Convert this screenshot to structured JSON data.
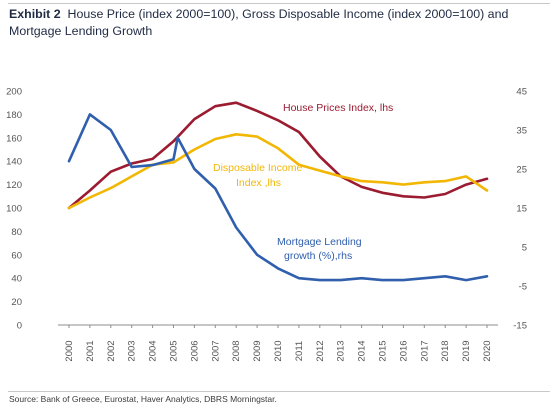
{
  "header": {
    "exhibit_label": "Exhibit 2",
    "title": "House Price (index 2000=100), Gross Disposable Income (index 2000=100) and Mortgage Lending Growth"
  },
  "footer": {
    "source": "Source: Bank of Greece, Eurostat, Haver Analytics, DBRS Morningstar."
  },
  "colors": {
    "house": "#9b1b30",
    "income": "#f2b705",
    "mortgage": "#2f5fad"
  },
  "chart_data": {
    "type": "line",
    "x": [
      "2000",
      "2001",
      "2002",
      "2003",
      "2004",
      "2005",
      "2006",
      "2007",
      "2008",
      "2009",
      "2010",
      "2011",
      "2012",
      "2013",
      "2014",
      "2015",
      "2016",
      "2017",
      "2018",
      "2019",
      "2020"
    ],
    "y_left": {
      "min": 0,
      "max": 200,
      "ticks": [
        0,
        20,
        40,
        60,
        80,
        100,
        120,
        140,
        160,
        180,
        200
      ]
    },
    "y_right": {
      "min": -15,
      "max": 45,
      "ticks": [
        -15,
        -5,
        5,
        15,
        25,
        35,
        45
      ]
    },
    "grid": false,
    "series": [
      {
        "name": "House Prices Index, lhs",
        "axis": "left",
        "color_key": "house",
        "points": [
          [
            2000,
            100
          ],
          [
            2001,
            115
          ],
          [
            2002,
            131
          ],
          [
            2003,
            138
          ],
          [
            2004,
            142
          ],
          [
            2005,
            157
          ],
          [
            2006,
            176
          ],
          [
            2007,
            187
          ],
          [
            2008,
            190
          ],
          [
            2009,
            183
          ],
          [
            2010,
            175
          ],
          [
            2011,
            165
          ],
          [
            2012,
            144
          ],
          [
            2013,
            127
          ],
          [
            2014,
            118
          ],
          [
            2015,
            113
          ],
          [
            2016,
            110
          ],
          [
            2017,
            109
          ],
          [
            2018,
            112
          ],
          [
            2019,
            120
          ],
          [
            2020,
            125
          ]
        ]
      },
      {
        "name": "Disposable Income Index ,lhs",
        "axis": "left",
        "color_key": "income",
        "points": [
          [
            2000,
            100
          ],
          [
            2001,
            109
          ],
          [
            2002,
            117
          ],
          [
            2003,
            127
          ],
          [
            2004,
            137
          ],
          [
            2005,
            139
          ],
          [
            2006,
            150
          ],
          [
            2007,
            159
          ],
          [
            2008,
            163
          ],
          [
            2009,
            161
          ],
          [
            2010,
            151
          ],
          [
            2011,
            137
          ],
          [
            2012,
            132
          ],
          [
            2013,
            127
          ],
          [
            2014,
            123
          ],
          [
            2015,
            122
          ],
          [
            2016,
            120
          ],
          [
            2017,
            122
          ],
          [
            2018,
            123
          ],
          [
            2019,
            127
          ],
          [
            2020,
            115
          ]
        ]
      },
      {
        "name": "Mortgage Lending growth (%),rhs",
        "axis": "right",
        "color_key": "mortgage",
        "points": [
          [
            2000,
            27
          ],
          [
            2001,
            39
          ],
          [
            2002,
            35
          ],
          [
            2003,
            25.5
          ],
          [
            2004,
            26
          ],
          [
            2005,
            27.5
          ],
          [
            2005.2,
            33
          ],
          [
            2006,
            25
          ],
          [
            2007,
            20
          ],
          [
            2008,
            10
          ],
          [
            2009,
            3
          ],
          [
            2010,
            -0.5
          ],
          [
            2011,
            -3
          ],
          [
            2012,
            -3.5
          ],
          [
            2013,
            -3.5
          ],
          [
            2014,
            -3
          ],
          [
            2015,
            -3.5
          ],
          [
            2016,
            -3.5
          ],
          [
            2017,
            -3
          ],
          [
            2018,
            -2.5
          ],
          [
            2019,
            -3.5
          ],
          [
            2020,
            -2.5
          ]
        ]
      }
    ],
    "annotations": {
      "house": "House Prices Index, lhs",
      "income_line1": "Disposable Income",
      "income_line2": "Index ,lhs",
      "mortgage_line1": "Mortgage Lending",
      "mortgage_line2": "growth (%),rhs"
    }
  }
}
